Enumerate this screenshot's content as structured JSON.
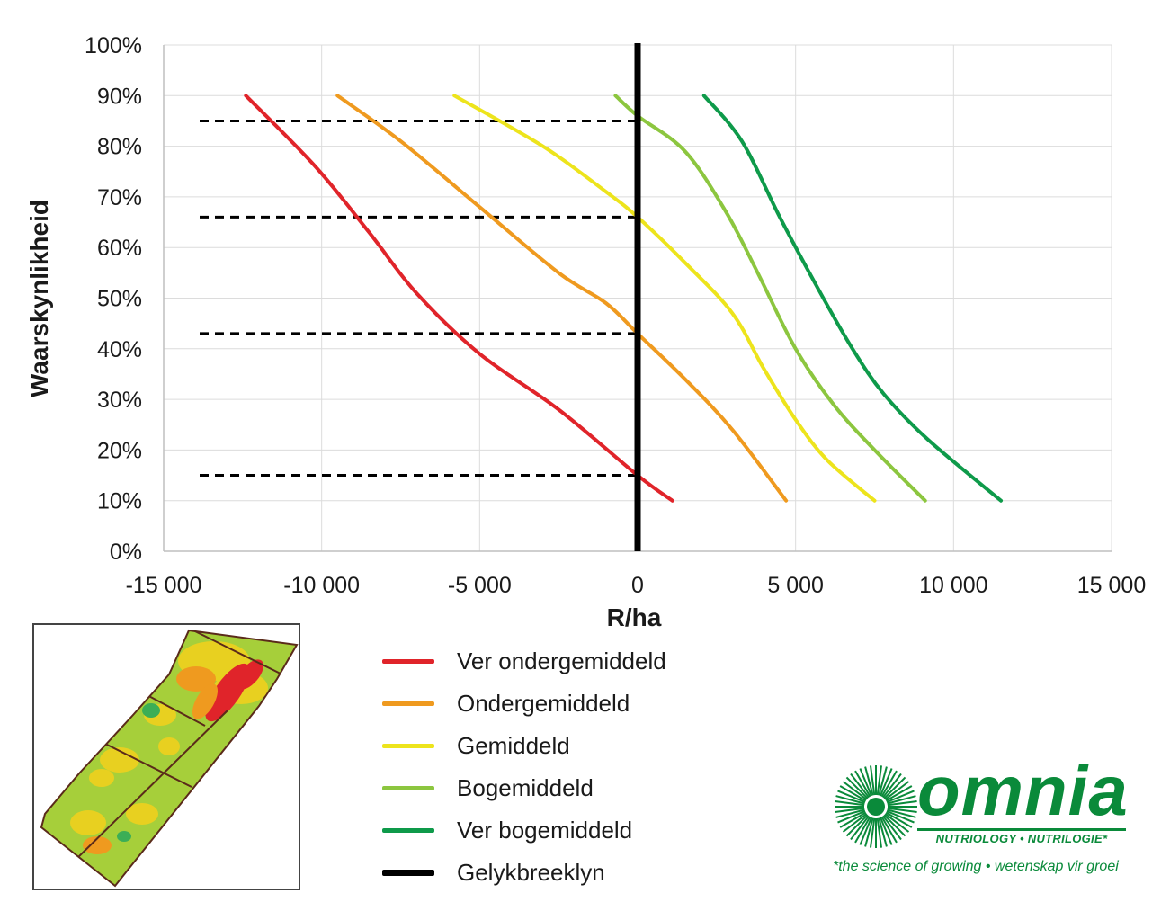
{
  "chart_data": {
    "type": "line",
    "xlabel": "R/ha",
    "ylabel": "Waarskynlikheid",
    "xlim": [
      -15000,
      15000
    ],
    "ylim": [
      0,
      100
    ],
    "x_ticks": [
      -15000,
      -10000,
      -5000,
      0,
      5000,
      10000,
      15000
    ],
    "x_tick_labels": [
      "-15 000",
      "-10 000",
      "-5 000",
      "0",
      "5 000",
      "10 000",
      "15 000"
    ],
    "y_ticks": [
      0,
      10,
      20,
      30,
      40,
      50,
      60,
      70,
      80,
      90,
      100
    ],
    "y_tick_labels": [
      "0%",
      "10%",
      "20%",
      "30%",
      "40%",
      "50%",
      "60%",
      "70%",
      "80%",
      "90%",
      "100%"
    ],
    "grid": true,
    "series": [
      {
        "name": "Ver ondergemiddeld",
        "color": "#e0242a",
        "points": [
          [
            -12400,
            90
          ],
          [
            -10200,
            76
          ],
          [
            -8500,
            63
          ],
          [
            -7000,
            51
          ],
          [
            -5000,
            39
          ],
          [
            -2500,
            28
          ],
          [
            0,
            15
          ],
          [
            1100,
            10
          ]
        ]
      },
      {
        "name": "Ondergemiddeld",
        "color": "#ef9a1f",
        "points": [
          [
            -9500,
            90
          ],
          [
            -7500,
            81
          ],
          [
            -5000,
            68
          ],
          [
            -2500,
            55
          ],
          [
            -1000,
            49
          ],
          [
            0,
            43
          ],
          [
            1500,
            34
          ],
          [
            3000,
            24
          ],
          [
            4700,
            10
          ]
        ]
      },
      {
        "name": "Gemiddeld",
        "color": "#ede41c",
        "points": [
          [
            -5800,
            90
          ],
          [
            -3000,
            80
          ],
          [
            -1000,
            71
          ],
          [
            0,
            66
          ],
          [
            1500,
            57
          ],
          [
            3000,
            47
          ],
          [
            4000,
            36
          ],
          [
            5000,
            26
          ],
          [
            6000,
            18
          ],
          [
            7500,
            10
          ]
        ]
      },
      {
        "name": "Bogemiddeld",
        "color": "#8cc63f",
        "points": [
          [
            -700,
            90
          ],
          [
            0,
            86
          ],
          [
            1500,
            79
          ],
          [
            2800,
            67
          ],
          [
            3800,
            55
          ],
          [
            5000,
            40
          ],
          [
            6200,
            29
          ],
          [
            7500,
            20
          ],
          [
            9100,
            10
          ]
        ]
      },
      {
        "name": "Ver bogemiddeld",
        "color": "#0e9a4a",
        "points": [
          [
            2100,
            90
          ],
          [
            3300,
            81
          ],
          [
            4500,
            66
          ],
          [
            5700,
            52
          ],
          [
            6800,
            40
          ],
          [
            7800,
            31
          ],
          [
            9200,
            22
          ],
          [
            11500,
            10
          ]
        ]
      }
    ],
    "breakeven": {
      "name": "Gelykbreeklyn",
      "color": "#000000",
      "x": 0
    },
    "reference_lines": [
      {
        "y": 85,
        "x_from": -15000,
        "x_to": 0
      },
      {
        "y": 66,
        "x_from": -15000,
        "x_to": 0
      },
      {
        "y": 43,
        "x_from": -15000,
        "x_to": 0
      },
      {
        "y": 15,
        "x_from": -15000,
        "x_to": 0
      }
    ]
  },
  "legend": {
    "items": [
      {
        "label": "Ver ondergemiddeld",
        "color": "#e0242a"
      },
      {
        "label": "Ondergemiddeld",
        "color": "#ef9a1f"
      },
      {
        "label": "Gemiddeld",
        "color": "#ede41c"
      },
      {
        "label": "Bogemiddeld",
        "color": "#8cc63f"
      },
      {
        "label": "Ver bogemiddeld",
        "color": "#0e9a4a"
      },
      {
        "label": "Gelykbreeklyn",
        "color": "#000000"
      }
    ]
  },
  "logo": {
    "word": "omnia",
    "subline": "NUTRIOLOGY • NUTRILOGIE*",
    "tagline": "*the science of growing • wetenskap vir groei",
    "color": "#0a8a3a"
  }
}
